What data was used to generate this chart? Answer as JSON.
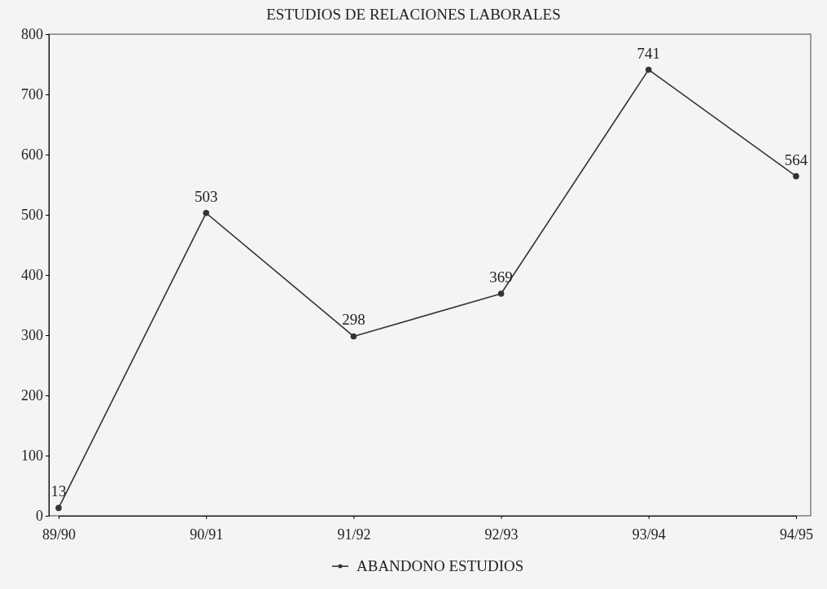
{
  "chart_data": {
    "type": "line",
    "title": "ESTUDIOS DE RELACIONES LABORALES",
    "categories": [
      "89/90",
      "90/91",
      "91/92",
      "92/93",
      "93/94",
      "94/95"
    ],
    "series": [
      {
        "name": "ABANDONO ESTUDIOS",
        "color": "#333333",
        "values": [
          13,
          503,
          298,
          369,
          741,
          564
        ]
      }
    ],
    "ylim": [
      0,
      800
    ],
    "yticks": [
      0,
      100,
      200,
      300,
      400,
      500,
      600,
      700,
      800
    ],
    "grid": false,
    "legend": "bottom",
    "marker": "circle",
    "line_style": "solid",
    "data_labels": true
  }
}
